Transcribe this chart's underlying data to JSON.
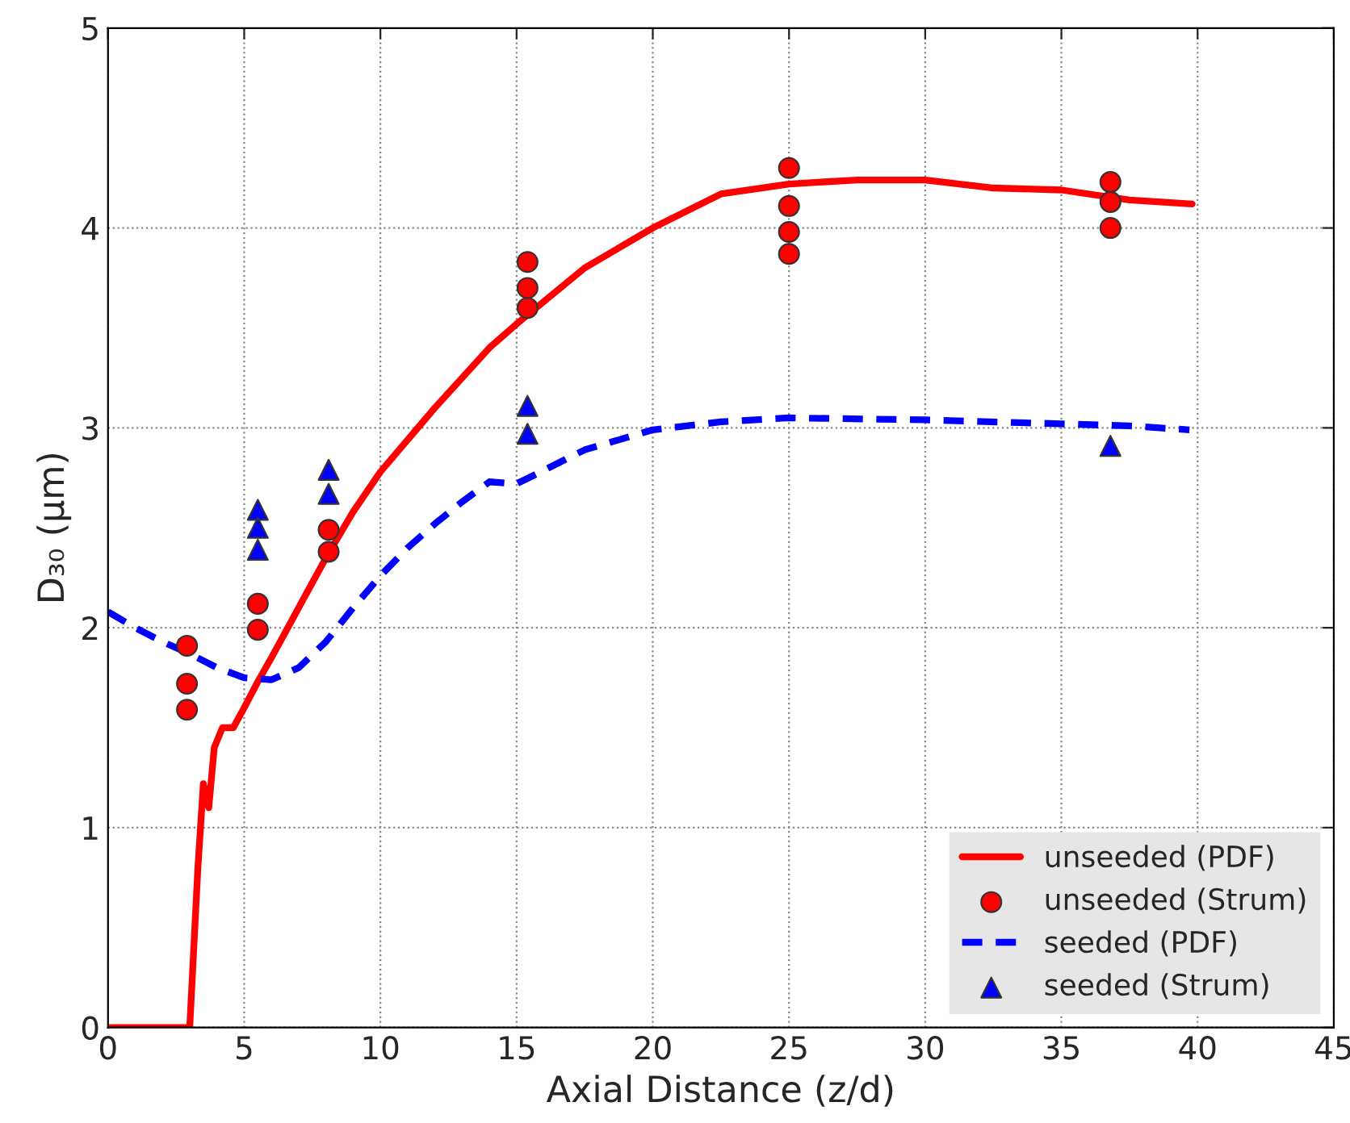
{
  "chart_data": {
    "type": "line",
    "xlabel": "Axial Distance (z/d)",
    "ylabel": "D₃₀ (μm)",
    "xlim": [
      0,
      45
    ],
    "xticks": [
      0,
      5,
      10,
      15,
      20,
      25,
      30,
      35,
      40,
      45
    ],
    "ylim": [
      0,
      5
    ],
    "yticks": [
      0,
      1,
      2,
      3,
      4,
      5
    ],
    "grid": true,
    "legend": "bottom right",
    "series": [
      {
        "name": "unseeded (PDF)",
        "color": "#ff0000",
        "line_style": "solid",
        "marker": "none",
        "x": [
          0,
          3.0,
          3.3,
          3.5,
          3.7,
          3.9,
          4.2,
          4.6,
          5.0,
          5.5,
          6,
          7,
          8,
          9,
          10,
          12,
          14,
          15,
          17.5,
          20,
          22.5,
          25,
          27.5,
          30,
          32.5,
          35,
          37.5,
          39.8
        ],
        "values": [
          0,
          0,
          0.8,
          1.22,
          1.1,
          1.4,
          1.5,
          1.5,
          1.6,
          1.73,
          1.85,
          2.1,
          2.35,
          2.58,
          2.78,
          3.1,
          3.4,
          3.52,
          3.8,
          4.0,
          4.17,
          4.22,
          4.24,
          4.24,
          4.2,
          4.19,
          4.14,
          4.12
        ]
      },
      {
        "name": "unseeded (Strum)",
        "type": "scatter",
        "color": "#ff0000",
        "marker": "circle",
        "x": [
          2.9,
          2.9,
          2.9,
          5.5,
          5.5,
          8.1,
          8.1,
          15.4,
          15.4,
          15.4,
          25,
          25,
          25,
          25,
          36.8,
          36.8,
          36.8
        ],
        "values": [
          1.91,
          1.72,
          1.59,
          2.12,
          1.99,
          2.49,
          2.38,
          3.83,
          3.7,
          3.6,
          4.3,
          4.11,
          3.98,
          3.87,
          4.23,
          4.13,
          4.0
        ]
      },
      {
        "name": "seeded (PDF)",
        "color": "#0000ff",
        "line_style": "dashed",
        "marker": "none",
        "x": [
          0,
          1,
          2,
          3,
          4,
          5,
          6,
          7,
          8,
          9,
          10,
          11,
          12,
          13,
          14,
          15,
          17.5,
          20,
          22.5,
          25,
          30,
          35,
          37.5,
          39.7
        ],
        "values": [
          2.08,
          2.0,
          1.93,
          1.87,
          1.8,
          1.75,
          1.74,
          1.8,
          1.93,
          2.1,
          2.26,
          2.4,
          2.52,
          2.63,
          2.73,
          2.72,
          2.89,
          2.99,
          3.03,
          3.05,
          3.04,
          3.02,
          3.01,
          2.99
        ]
      },
      {
        "name": "seeded (Strum)",
        "type": "scatter",
        "color": "#0000ff",
        "marker": "triangle",
        "x": [
          5.5,
          5.5,
          5.5,
          8.1,
          8.1,
          15.4,
          15.4,
          36.8
        ],
        "values": [
          2.59,
          2.5,
          2.39,
          2.79,
          2.67,
          3.11,
          2.97,
          2.91
        ]
      }
    ]
  }
}
